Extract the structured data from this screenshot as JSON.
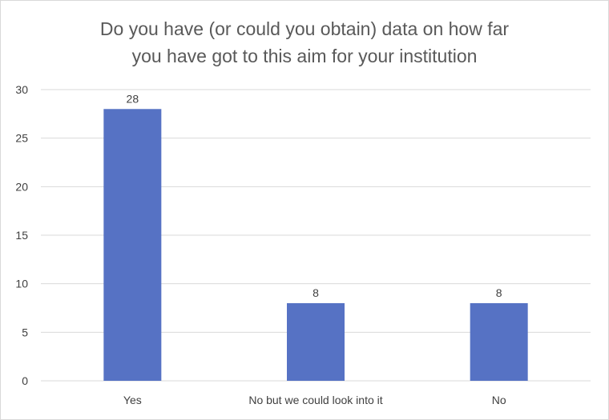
{
  "chart_data": {
    "type": "bar",
    "title": "Do you have (or could you obtain) data on how far\nyou have got to this aim for your institution",
    "categories": [
      "Yes",
      "No but we could look into it",
      "No"
    ],
    "values": [
      28,
      8,
      8
    ],
    "data_labels": [
      "28",
      "8",
      "8"
    ],
    "ylim": [
      0,
      30
    ],
    "yticks": [
      "0",
      "5",
      "10",
      "15",
      "20",
      "25",
      "30"
    ],
    "grid": true,
    "legend": "none",
    "bar_color": "#5672c4",
    "grid_color": "#d9d9d9",
    "text_color": "#404040",
    "title_color": "#595959"
  }
}
